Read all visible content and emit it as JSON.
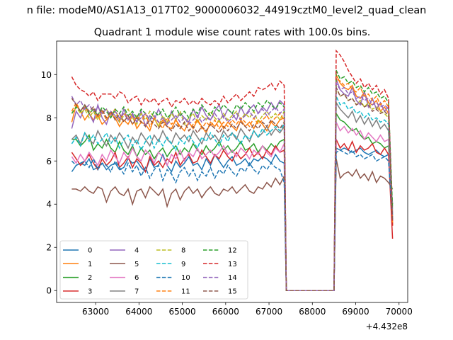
{
  "chart_data": {
    "type": "line",
    "suptitle": "n file: modeM0/AS1A13_017T02_9000006032_44919cztM0_level2_quad_clean",
    "title": "Quadrant 1 module wise count rates with 100.0s bins.",
    "xlabel": "",
    "ylabel": "",
    "x_offset_text": "+4.432e8",
    "xlim": [
      62100,
      70200
    ],
    "ylim": [
      -0.55,
      11.55
    ],
    "xticks": [
      63000,
      64000,
      65000,
      66000,
      67000,
      68000,
      69000,
      70000
    ],
    "yticks": [
      0,
      2,
      4,
      6,
      8,
      10
    ],
    "grid": false,
    "legend_position": "lower-left",
    "legend_columns": 4,
    "segments": [
      [
        62450,
        67350
      ],
      [
        68550,
        69850
      ]
    ],
    "gap": {
      "x": [
        67400,
        68500
      ],
      "y": 0
    },
    "series": [
      {
        "name": "0",
        "color": "#1f77b4",
        "dash": false,
        "a": [
          5.5,
          5.8,
          5.9,
          5.8,
          6.1,
          5.6,
          5.7,
          5.9,
          5.6,
          5.8,
          5.9,
          5.6,
          5.7,
          6.1,
          5.9,
          6.0,
          5.7,
          5.5,
          6.1,
          5.7,
          5.8,
          6.3,
          5.8,
          5.5,
          6.0,
          5.7,
          5.9,
          6.2,
          5.8,
          5.9,
          5.6,
          6.1,
          5.8,
          6.3,
          6.0,
          5.7,
          6.0,
          6.2,
          5.8,
          5.9,
          6.1,
          5.8,
          6.1,
          6.0,
          6.2,
          6.1,
          5.9,
          6.3,
          6.0,
          5.9
        ],
        "b": [
          6.6,
          6.5,
          6.6,
          6.5,
          6.4,
          6.5,
          6.6,
          6.4,
          6.3,
          6.4,
          6.5,
          6.3,
          6.2,
          6.3,
          4.0
        ]
      },
      {
        "name": "1",
        "color": "#ff7f0e",
        "dash": false,
        "a": [
          7.8,
          8.6,
          8.3,
          7.9,
          8.2,
          7.9,
          8.1,
          7.7,
          7.9,
          8.2,
          8.0,
          7.6,
          7.9,
          7.7,
          8.1,
          7.5,
          7.8,
          7.7,
          7.4,
          8.0,
          7.6,
          7.9,
          7.6,
          7.5,
          7.9,
          7.6,
          7.4,
          7.8,
          7.5,
          7.9,
          7.6,
          7.3,
          7.8,
          7.6,
          7.9,
          7.5,
          7.8,
          7.6,
          7.4,
          7.9,
          7.6,
          7.8,
          7.5,
          7.9,
          7.7,
          7.4,
          7.8,
          7.6,
          7.9,
          8.0
        ],
        "b": [
          10.0,
          9.6,
          9.4,
          9.3,
          9.5,
          9.0,
          8.9,
          9.2,
          8.7,
          8.6,
          8.8,
          8.3,
          8.5,
          8.2,
          3.0
        ]
      },
      {
        "name": "2",
        "color": "#2ca02c",
        "dash": false,
        "a": [
          7.0,
          7.0,
          6.7,
          6.9,
          7.2,
          6.5,
          6.8,
          6.6,
          7.0,
          6.6,
          6.4,
          6.9,
          6.5,
          6.3,
          6.7,
          6.2,
          6.6,
          6.3,
          6.5,
          6.1,
          6.4,
          6.6,
          6.2,
          6.5,
          6.7,
          6.3,
          6.6,
          6.4,
          6.8,
          6.5,
          6.3,
          6.7,
          6.4,
          6.6,
          6.9,
          6.5,
          6.7,
          6.4,
          6.6,
          6.9,
          6.5,
          6.6,
          6.8,
          6.4,
          6.7,
          6.5,
          6.8,
          6.6,
          6.9,
          7.0
        ],
        "b": [
          8.2,
          7.9,
          7.8,
          7.6,
          7.4,
          7.5,
          7.2,
          7.0,
          7.1,
          6.8,
          6.9,
          6.8,
          6.6,
          6.7,
          3.2
        ]
      },
      {
        "name": "3",
        "color": "#d62728",
        "dash": false,
        "a": [
          6.4,
          6.1,
          5.8,
          6.0,
          6.3,
          5.9,
          5.6,
          6.1,
          5.8,
          6.0,
          6.4,
          5.7,
          5.9,
          6.2,
          5.7,
          6.1,
          5.9,
          5.5,
          6.2,
          5.8,
          6.0,
          5.7,
          6.1,
          5.9,
          6.4,
          5.8,
          6.1,
          6.3,
          5.9,
          6.0,
          6.5,
          6.2,
          5.9,
          6.3,
          6.1,
          6.5,
          6.2,
          6.0,
          6.4,
          6.1,
          6.3,
          6.6,
          6.2,
          6.4,
          6.1,
          6.5,
          6.3,
          6.7,
          6.4,
          6.5
        ],
        "b": [
          7.0,
          6.6,
          6.8,
          6.5,
          6.9,
          6.4,
          6.7,
          6.5,
          6.6,
          6.8,
          6.4,
          6.3,
          6.6,
          6.3,
          2.4
        ]
      },
      {
        "name": "4",
        "color": "#9467bd",
        "dash": false,
        "a": [
          7.5,
          8.3,
          8.0,
          8.5,
          8.2,
          7.8,
          8.6,
          8.0,
          7.7,
          8.3,
          8.1,
          7.8,
          8.4,
          7.9,
          8.2,
          7.8,
          8.3,
          7.6,
          8.1,
          7.9,
          8.4,
          8.0,
          7.7,
          8.3,
          7.9,
          8.2,
          8.0,
          7.8,
          8.4,
          8.0,
          8.5,
          8.1,
          7.9,
          8.3,
          8.6,
          8.0,
          8.4,
          8.2,
          7.9,
          8.5,
          8.1,
          8.4,
          8.6,
          8.2,
          8.5,
          8.3,
          8.7,
          8.4,
          8.8,
          8.6
        ],
        "b": [
          9.8,
          9.3,
          9.1,
          9.0,
          9.4,
          8.8,
          8.6,
          9.2,
          8.5,
          8.9,
          8.4,
          8.7,
          8.3,
          8.5,
          3.6
        ]
      },
      {
        "name": "5",
        "color": "#8c564b",
        "dash": false,
        "a": [
          4.7,
          4.7,
          4.6,
          4.8,
          4.6,
          4.5,
          4.8,
          4.7,
          4.1,
          4.6,
          4.8,
          4.5,
          4.4,
          4.7,
          4.0,
          4.6,
          4.7,
          4.3,
          4.8,
          4.6,
          4.4,
          4.7,
          3.9,
          4.5,
          4.7,
          4.2,
          4.6,
          4.8,
          4.5,
          4.7,
          4.3,
          4.6,
          4.8,
          4.5,
          4.4,
          4.7,
          4.6,
          4.8,
          4.5,
          4.7,
          4.9,
          4.6,
          4.5,
          4.8,
          4.7,
          5.0,
          4.8,
          5.2,
          4.9,
          5.3
        ],
        "b": [
          6.1,
          5.2,
          5.4,
          5.5,
          5.3,
          5.6,
          5.2,
          5.4,
          5.1,
          5.5,
          5.0,
          5.3,
          5.2,
          5.0,
          4.7
        ]
      },
      {
        "name": "6",
        "color": "#e377c2",
        "dash": false,
        "a": [
          6.2,
          5.9,
          6.3,
          6.0,
          6.4,
          6.1,
          5.8,
          6.3,
          6.0,
          6.5,
          6.2,
          5.9,
          6.4,
          6.1,
          6.6,
          6.2,
          6.0,
          6.5,
          6.3,
          5.9,
          6.4,
          6.2,
          5.8,
          6.3,
          6.1,
          6.5,
          6.0,
          6.4,
          6.2,
          6.6,
          6.1,
          6.3,
          6.5,
          6.2,
          6.4,
          6.7,
          6.3,
          6.5,
          6.2,
          6.6,
          6.4,
          6.1,
          6.5,
          6.3,
          6.7,
          6.4,
          6.2,
          6.6,
          6.4,
          6.8
        ],
        "b": [
          7.8,
          7.4,
          7.6,
          7.3,
          7.5,
          7.2,
          7.4,
          7.0,
          7.3,
          7.1,
          6.9,
          7.2,
          6.9,
          7.0,
          3.2
        ]
      },
      {
        "name": "7",
        "color": "#7f7f7f",
        "dash": false,
        "a": [
          7.0,
          7.2,
          6.8,
          7.3,
          7.0,
          6.8,
          7.4,
          7.0,
          6.7,
          7.2,
          6.9,
          7.3,
          7.0,
          6.6,
          7.1,
          6.8,
          7.3,
          7.0,
          6.7,
          7.2,
          6.9,
          7.4,
          7.0,
          6.8,
          7.3,
          7.0,
          7.2,
          6.9,
          7.4,
          7.1,
          6.8,
          7.3,
          7.0,
          7.2,
          6.9,
          7.4,
          7.1,
          7.3,
          7.0,
          7.5,
          7.2,
          6.9,
          7.4,
          7.1,
          7.3,
          7.6,
          7.2,
          7.5,
          7.3,
          7.6
        ],
        "b": [
          8.7,
          8.4,
          8.2,
          8.0,
          8.3,
          7.8,
          8.1,
          7.7,
          8.0,
          7.6,
          7.9,
          7.5,
          7.7,
          7.4,
          3.4
        ]
      },
      {
        "name": "8",
        "color": "#bcbd22",
        "dash": true,
        "a": [
          8.2,
          8.5,
          8.2,
          8.4,
          8.0,
          8.3,
          7.9,
          8.2,
          8.4,
          8.0,
          8.3,
          7.8,
          8.1,
          8.4,
          8.0,
          7.7,
          8.2,
          7.9,
          8.3,
          8.0,
          7.6,
          8.1,
          7.8,
          8.2,
          7.9,
          8.3,
          7.7,
          8.0,
          8.2,
          7.8,
          8.1,
          7.9,
          8.3,
          8.0,
          7.8,
          8.2,
          7.9,
          8.1,
          8.3,
          7.9,
          8.2,
          8.0,
          8.3,
          7.8,
          8.1,
          8.3,
          8.0,
          8.2,
          7.9,
          8.3
        ],
        "b": [
          9.4,
          9.0,
          9.1,
          8.8,
          8.9,
          8.6,
          8.8,
          8.5,
          8.7,
          8.4,
          8.5,
          8.3,
          8.2,
          8.0,
          3.8
        ]
      },
      {
        "name": "9",
        "color": "#17becf",
        "dash": true,
        "a": [
          6.8,
          7.1,
          6.7,
          7.3,
          6.9,
          7.2,
          6.8,
          7.0,
          7.3,
          6.8,
          7.1,
          6.6,
          7.0,
          7.2,
          6.7,
          7.0,
          6.5,
          6.9,
          7.2,
          6.6,
          7.0,
          6.7,
          7.1,
          6.8,
          6.5,
          7.0,
          6.8,
          7.2,
          6.9,
          6.6,
          7.1,
          6.9,
          7.3,
          7.0,
          6.7,
          7.2,
          6.9,
          7.3,
          7.1,
          6.8,
          7.2,
          7.0,
          7.4,
          7.1,
          7.5,
          7.2,
          7.4,
          7.6,
          7.4,
          7.7
        ],
        "b": [
          9.0,
          8.6,
          8.7,
          8.4,
          8.5,
          8.2,
          8.3,
          8.0,
          8.2,
          7.9,
          8.0,
          7.8,
          7.9,
          7.7,
          3.5
        ]
      },
      {
        "name": "10",
        "color": "#1f77b4",
        "dash": true,
        "a": [
          6.0,
          5.8,
          5.9,
          6.0,
          5.7,
          6.1,
          5.6,
          5.9,
          5.8,
          5.5,
          6.0,
          5.7,
          5.4,
          5.9,
          5.5,
          5.8,
          5.3,
          5.7,
          5.2,
          5.6,
          5.8,
          5.1,
          5.6,
          5.4,
          5.0,
          5.5,
          5.7,
          5.3,
          5.6,
          5.1,
          5.5,
          5.3,
          5.7,
          5.2,
          5.6,
          5.4,
          5.8,
          5.5,
          5.3,
          5.7,
          5.5,
          5.9,
          5.6,
          5.4,
          5.8,
          5.6,
          5.9,
          5.7,
          5.6,
          5.0
        ],
        "b": [
          6.4,
          6.5,
          6.4,
          6.3,
          6.5,
          6.2,
          6.3,
          6.1,
          6.2,
          6.3,
          6.0,
          6.1,
          6.2,
          6.0,
          3.3
        ]
      },
      {
        "name": "11",
        "color": "#ff7f0e",
        "dash": true,
        "a": [
          8.3,
          8.7,
          8.3,
          8.5,
          8.2,
          8.4,
          8.0,
          8.3,
          7.9,
          8.2,
          8.4,
          7.9,
          8.2,
          8.0,
          7.7,
          8.1,
          7.8,
          8.2,
          7.6,
          8.0,
          7.8,
          7.5,
          8.0,
          7.7,
          7.9,
          7.5,
          7.8,
          7.4,
          7.7,
          7.9,
          7.5,
          7.8,
          7.6,
          7.9,
          7.5,
          7.8,
          7.6,
          7.9,
          7.7,
          8.0,
          7.8,
          7.6,
          8.0,
          7.7,
          7.9,
          8.1,
          7.8,
          8.0,
          8.2,
          7.9
        ],
        "b": [
          9.8,
          9.7,
          9.5,
          9.6,
          9.3,
          9.2,
          9.4,
          9.0,
          9.1,
          8.8,
          9.0,
          8.6,
          8.8,
          8.5,
          3.1
        ]
      },
      {
        "name": "12",
        "color": "#2ca02c",
        "dash": true,
        "a": [
          8.2,
          8.5,
          8.3,
          8.6,
          8.2,
          8.4,
          8.1,
          8.5,
          8.3,
          8.0,
          8.4,
          8.2,
          8.5,
          8.1,
          8.3,
          8.0,
          8.4,
          8.2,
          7.9,
          8.3,
          8.1,
          8.4,
          8.0,
          8.2,
          8.5,
          8.1,
          8.3,
          8.0,
          8.4,
          8.2,
          8.6,
          8.3,
          8.1,
          8.5,
          8.3,
          8.6,
          8.4,
          8.2,
          8.6,
          8.4,
          8.7,
          8.5,
          8.3,
          8.7,
          8.5,
          8.8,
          8.6,
          8.4,
          8.7,
          8.5
        ],
        "b": [
          10.2,
          9.8,
          9.9,
          9.6,
          9.7,
          9.4,
          9.5,
          9.2,
          9.4,
          9.1,
          9.2,
          8.9,
          9.0,
          8.7,
          3.8
        ]
      },
      {
        "name": "13",
        "color": "#d62728",
        "dash": true,
        "a": [
          9.9,
          9.5,
          9.3,
          9.2,
          9.0,
          9.2,
          8.8,
          9.1,
          9.1,
          9.1,
          8.9,
          9.2,
          9.1,
          8.7,
          8.9,
          9.0,
          8.6,
          8.9,
          8.7,
          8.9,
          8.6,
          8.8,
          8.9,
          8.5,
          8.8,
          8.7,
          8.9,
          8.6,
          8.8,
          8.6,
          8.9,
          8.7,
          8.6,
          8.8,
          8.6,
          9.0,
          8.7,
          8.9,
          9.1,
          8.8,
          9.0,
          9.2,
          9.0,
          9.4,
          9.3,
          9.4,
          9.6,
          9.3,
          9.7,
          9.5
        ],
        "b": [
          11.1,
          10.9,
          10.6,
          10.2,
          9.9,
          9.6,
          9.8,
          9.4,
          9.6,
          9.3,
          9.5,
          9.1,
          9.3,
          8.9,
          3.0
        ]
      },
      {
        "name": "14",
        "color": "#9467bd",
        "dash": true,
        "a": [
          9.0,
          8.6,
          8.8,
          8.4,
          8.6,
          8.3,
          8.5,
          8.2,
          8.4,
          8.1,
          8.3,
          8.0,
          8.2,
          7.9,
          8.1,
          7.8,
          8.0,
          8.2,
          7.9,
          8.1,
          7.8,
          8.0,
          7.7,
          7.9,
          8.1,
          7.8,
          8.0,
          7.7,
          7.9,
          8.1,
          7.8,
          8.0,
          7.9,
          8.2,
          7.9,
          8.1,
          7.8,
          8.0,
          8.2,
          7.9,
          8.1,
          8.3,
          8.0,
          8.2,
          8.4,
          8.1,
          8.3,
          8.5,
          8.2,
          8.4
        ],
        "b": [
          9.6,
          9.3,
          9.4,
          9.1,
          9.2,
          8.9,
          9.0,
          8.8,
          8.9,
          8.6,
          8.7,
          8.5,
          8.6,
          8.4,
          3.3
        ]
      },
      {
        "name": "15",
        "color": "#8c564b",
        "dash": true,
        "a": [
          8.9,
          8.6,
          8.3,
          8.6,
          8.3,
          8.5,
          8.1,
          8.4,
          8.0,
          8.3,
          7.9,
          8.2,
          7.8,
          8.1,
          7.7,
          8.0,
          7.8,
          7.6,
          7.9,
          7.7,
          7.5,
          7.8,
          7.6,
          7.4,
          7.7,
          7.5,
          7.8,
          7.4,
          7.6,
          7.3,
          7.6,
          7.4,
          7.7,
          7.5,
          7.3,
          7.6,
          7.4,
          7.7,
          7.5,
          7.8,
          7.6,
          7.4,
          7.7,
          7.5,
          7.8,
          7.6,
          7.9,
          7.7,
          7.5,
          7.8
        ],
        "b": [
          9.4,
          9.0,
          9.1,
          8.8,
          8.9,
          8.6,
          8.7,
          8.5,
          8.6,
          8.3,
          8.4,
          8.2,
          8.3,
          8.1,
          3.2
        ]
      }
    ]
  }
}
